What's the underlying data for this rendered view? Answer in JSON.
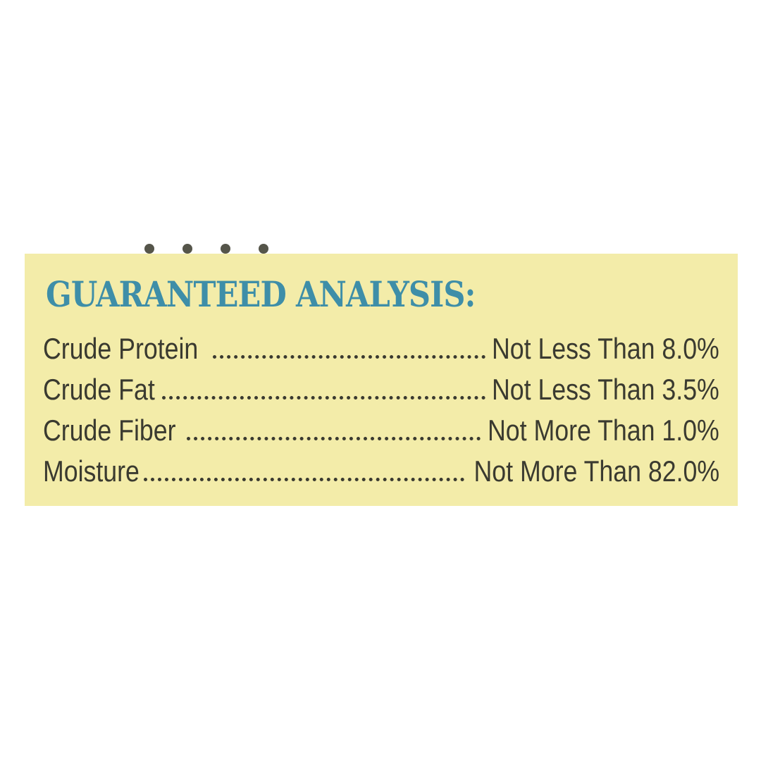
{
  "label": {
    "title": "GUARANTEED ANALYSIS:",
    "title_color": "#3e8ea8",
    "background_color": "#f3eca9",
    "rows": [
      {
        "name": "Crude Protein",
        "value": "Not Less Than 8.0%"
      },
      {
        "name": "Crude Fat",
        "value": "Not Less Than 3.5%"
      },
      {
        "name": "Crude Fiber",
        "value": "Not More Than 1.0%"
      },
      {
        "name": "Moisture",
        "value": "Not More Than 82.0%"
      }
    ]
  }
}
